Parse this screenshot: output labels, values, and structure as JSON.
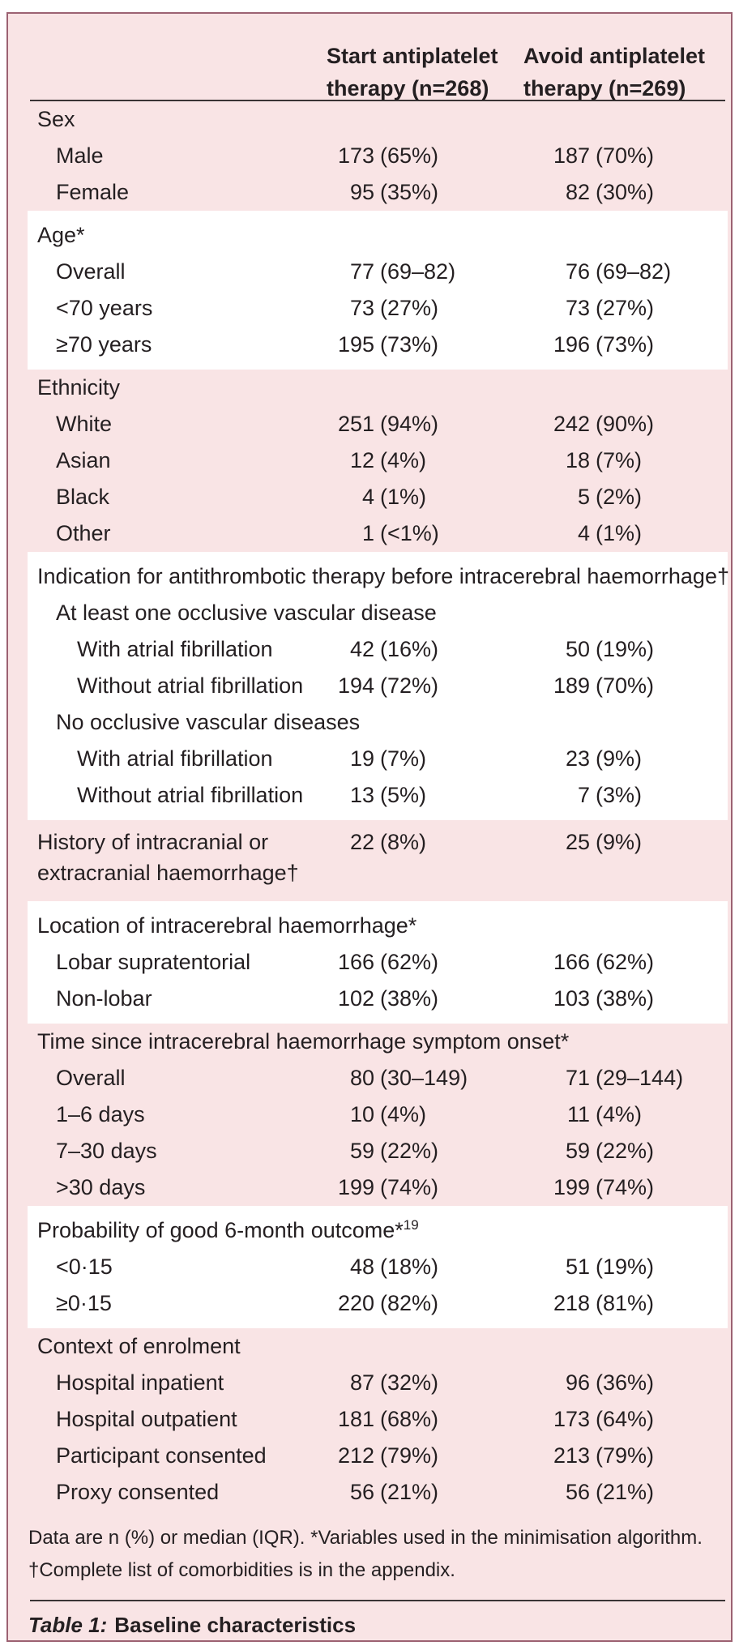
{
  "colors": {
    "panel_background": "#f9e4e5",
    "stripe_background": "#ffffff",
    "panel_border": "#9c6272",
    "rule": "#3a3435",
    "text": "#241f21"
  },
  "table": {
    "header": {
      "columns": [
        {
          "lines": [
            "Start antiplatelet",
            "therapy (n=268)"
          ]
        },
        {
          "lines": [
            "Avoid antiplatelet",
            "therapy (n=269)"
          ]
        }
      ]
    },
    "sections": [
      {
        "bg": "pink",
        "rows": [
          {
            "label": "Sex",
            "indent": 0
          },
          {
            "label": "Male",
            "indent": 1,
            "c1": {
              "n": "173",
              "p": "(65%)"
            },
            "c2": {
              "n": "187",
              "p": "(70%)"
            }
          },
          {
            "label": "Female",
            "indent": 1,
            "c1": {
              "n": "95",
              "p": "(35%)"
            },
            "c2": {
              "n": "82",
              "p": "(30%)"
            }
          }
        ]
      },
      {
        "bg": "white",
        "rows": [
          {
            "label": "Age*",
            "indent": 0
          },
          {
            "label": "Overall",
            "indent": 1,
            "c1": {
              "n": "77",
              "p": "(69–82)"
            },
            "c2": {
              "n": "76",
              "p": "(69–82)"
            }
          },
          {
            "label": "<70 years",
            "indent": 1,
            "c1": {
              "n": "73",
              "p": "(27%)"
            },
            "c2": {
              "n": "73",
              "p": "(27%)"
            }
          },
          {
            "label": "≥70 years",
            "indent": 1,
            "c1": {
              "n": "195",
              "p": "(73%)"
            },
            "c2": {
              "n": "196",
              "p": "(73%)"
            }
          }
        ]
      },
      {
        "bg": "pink",
        "rows": [
          {
            "label": "Ethnicity",
            "indent": 0
          },
          {
            "label": "White",
            "indent": 1,
            "c1": {
              "n": "251",
              "p": "(94%)"
            },
            "c2": {
              "n": "242",
              "p": "(90%)"
            }
          },
          {
            "label": "Asian",
            "indent": 1,
            "c1": {
              "n": "12",
              "p": "(4%)"
            },
            "c2": {
              "n": "18",
              "p": "(7%)"
            }
          },
          {
            "label": "Black",
            "indent": 1,
            "c1": {
              "n": "4",
              "p": "(1%)"
            },
            "c2": {
              "n": "5",
              "p": "(2%)"
            }
          },
          {
            "label": "Other",
            "indent": 1,
            "c1": {
              "n": "1",
              "p": "(<1%)"
            },
            "c2": {
              "n": "4",
              "p": "(1%)"
            }
          }
        ]
      },
      {
        "bg": "white",
        "rows": [
          {
            "label": "Indication for antithrombotic therapy before intracerebral haemorrhage†",
            "indent": 0
          },
          {
            "label": "At least one occlusive vascular disease",
            "indent": 1
          },
          {
            "label": "With atrial fibrillation",
            "indent": 2,
            "c1": {
              "n": "42",
              "p": "(16%)"
            },
            "c2": {
              "n": "50",
              "p": "(19%)"
            }
          },
          {
            "label": "Without atrial fibrillation",
            "indent": 2,
            "c1": {
              "n": "194",
              "p": "(72%)"
            },
            "c2": {
              "n": "189",
              "p": "(70%)"
            }
          },
          {
            "label": "No occlusive vascular diseases",
            "indent": 1
          },
          {
            "label": "With atrial fibrillation",
            "indent": 2,
            "c1": {
              "n": "19",
              "p": "(7%)"
            },
            "c2": {
              "n": "23",
              "p": "(9%)"
            }
          },
          {
            "label": "Without atrial fibrillation",
            "indent": 2,
            "c1": {
              "n": "13",
              "p": "(5%)"
            },
            "c2": {
              "n": "7",
              "p": "(3%)"
            }
          }
        ]
      },
      {
        "bg": "pink",
        "rows": [
          {
            "label": "History of intracranial or extracranial haemorrhage†",
            "indent": 0,
            "wrap": true,
            "c1": {
              "n": "22",
              "p": "(8%)"
            },
            "c2": {
              "n": "25",
              "p": "(9%)"
            }
          }
        ]
      },
      {
        "bg": "white",
        "rows": [
          {
            "label": "Location of intracerebral haemorrhage*",
            "indent": 0
          },
          {
            "label": "Lobar supratentorial",
            "indent": 1,
            "c1": {
              "n": "166",
              "p": "(62%)"
            },
            "c2": {
              "n": "166",
              "p": "(62%)"
            }
          },
          {
            "label": "Non-lobar",
            "indent": 1,
            "c1": {
              "n": "102",
              "p": "(38%)"
            },
            "c2": {
              "n": "103",
              "p": "(38%)"
            }
          }
        ]
      },
      {
        "bg": "pink",
        "rows": [
          {
            "label": "Time since intracerebral haemorrhage symptom onset*",
            "indent": 0
          },
          {
            "label": "Overall",
            "indent": 1,
            "c1": {
              "n": "80",
              "p": "(30–149)"
            },
            "c2": {
              "n": "71",
              "p": "(29–144)"
            }
          },
          {
            "label": "1–6 days",
            "indent": 1,
            "c1": {
              "n": "10",
              "p": "(4%)"
            },
            "c2": {
              "n": "11",
              "p": "(4%)"
            }
          },
          {
            "label": "7–30 days",
            "indent": 1,
            "c1": {
              "n": "59",
              "p": "(22%)"
            },
            "c2": {
              "n": "59",
              "p": "(22%)"
            }
          },
          {
            "label": ">30 days",
            "indent": 1,
            "c1": {
              "n": "199",
              "p": "(74%)"
            },
            "c2": {
              "n": "199",
              "p": "(74%)"
            }
          }
        ]
      },
      {
        "bg": "white",
        "rows": [
          {
            "label": "Probability of good 6-month outcome*",
            "sup": "19",
            "indent": 0
          },
          {
            "label": "<0·15",
            "indent": 1,
            "c1": {
              "n": "48",
              "p": "(18%)"
            },
            "c2": {
              "n": "51",
              "p": "(19%)"
            }
          },
          {
            "label": "≥0·15",
            "indent": 1,
            "c1": {
              "n": "220",
              "p": "(82%)"
            },
            "c2": {
              "n": "218",
              "p": "(81%)"
            }
          }
        ]
      },
      {
        "bg": "pink",
        "rows": [
          {
            "label": "Context of enrolment",
            "indent": 0
          },
          {
            "label": "Hospital inpatient",
            "indent": 1,
            "c1": {
              "n": "87",
              "p": "(32%)"
            },
            "c2": {
              "n": "96",
              "p": "(36%)"
            }
          },
          {
            "label": "Hospital outpatient",
            "indent": 1,
            "c1": {
              "n": "181",
              "p": "(68%)"
            },
            "c2": {
              "n": "173",
              "p": "(64%)"
            }
          },
          {
            "label": "Participant consented",
            "indent": 1,
            "c1": {
              "n": "212",
              "p": "(79%)"
            },
            "c2": {
              "n": "213",
              "p": "(79%)"
            }
          },
          {
            "label": "Proxy consented",
            "indent": 1,
            "c1": {
              "n": "56",
              "p": "(21%)"
            },
            "c2": {
              "n": "56",
              "p": "(21%)"
            }
          }
        ]
      }
    ],
    "footnote": {
      "line1": "Data are n (%) or median (IQR). *Variables used in the minimisation algorithm.",
      "line2": "†Complete list of comorbidities is in the appendix."
    },
    "caption": {
      "label": "Table 1:",
      "title": "Baseline characteristics"
    }
  }
}
